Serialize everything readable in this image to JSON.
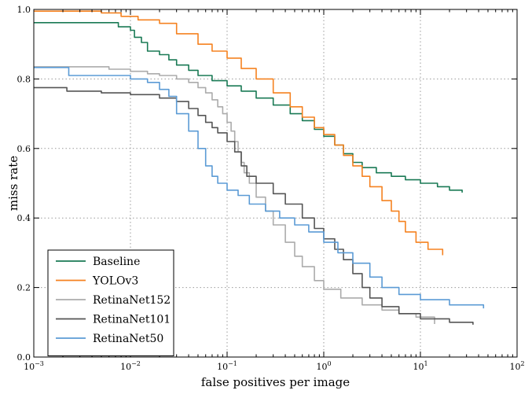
{
  "chart_data": {
    "type": "line",
    "title": "",
    "xlabel": "false positives per image",
    "ylabel": "miss rate",
    "xscale": "log",
    "xlim": [
      0.001,
      100
    ],
    "ylim": [
      0.0,
      1.0
    ],
    "xticks": [
      {
        "value": 0.001,
        "base": "10",
        "exp": "−3"
      },
      {
        "value": 0.01,
        "base": "10",
        "exp": "−2"
      },
      {
        "value": 0.1,
        "base": "10",
        "exp": "−1"
      },
      {
        "value": 1,
        "base": "10",
        "exp": "0"
      },
      {
        "value": 10,
        "base": "10",
        "exp": "1"
      },
      {
        "value": 100,
        "base": "10",
        "exp": "2"
      }
    ],
    "yticks": [
      {
        "value": 0.0,
        "label": "0.0"
      },
      {
        "value": 0.2,
        "label": "0.2"
      },
      {
        "value": 0.4,
        "label": "0.4"
      },
      {
        "value": 0.6,
        "label": "0.6"
      },
      {
        "value": 0.8,
        "label": "0.8"
      },
      {
        "value": 1.0,
        "label": "1.0"
      }
    ],
    "grid": true,
    "legend_position": "bottom-left",
    "series": [
      {
        "name": "Baseline",
        "color": "#1a7a55",
        "points": [
          [
            0.001,
            0.962
          ],
          [
            0.0052,
            0.962
          ],
          [
            0.0075,
            0.95
          ],
          [
            0.01,
            0.94
          ],
          [
            0.011,
            0.92
          ],
          [
            0.013,
            0.905
          ],
          [
            0.015,
            0.88
          ],
          [
            0.02,
            0.87
          ],
          [
            0.025,
            0.855
          ],
          [
            0.03,
            0.84
          ],
          [
            0.04,
            0.825
          ],
          [
            0.05,
            0.81
          ],
          [
            0.07,
            0.795
          ],
          [
            0.1,
            0.78
          ],
          [
            0.14,
            0.765
          ],
          [
            0.2,
            0.745
          ],
          [
            0.3,
            0.725
          ],
          [
            0.45,
            0.7
          ],
          [
            0.6,
            0.68
          ],
          [
            0.8,
            0.655
          ],
          [
            1.0,
            0.635
          ],
          [
            1.3,
            0.61
          ],
          [
            1.6,
            0.585
          ],
          [
            2.0,
            0.56
          ],
          [
            2.5,
            0.545
          ],
          [
            3.5,
            0.53
          ],
          [
            5.0,
            0.52
          ],
          [
            7.0,
            0.51
          ],
          [
            10,
            0.5
          ],
          [
            15,
            0.49
          ],
          [
            20,
            0.48
          ],
          [
            27,
            0.473
          ]
        ]
      },
      {
        "name": "YOLOv3",
        "color": "#f58220",
        "points": [
          [
            0.001,
            0.995
          ],
          [
            0.005,
            0.99
          ],
          [
            0.008,
            0.98
          ],
          [
            0.012,
            0.97
          ],
          [
            0.02,
            0.96
          ],
          [
            0.03,
            0.93
          ],
          [
            0.05,
            0.9
          ],
          [
            0.07,
            0.88
          ],
          [
            0.1,
            0.86
          ],
          [
            0.14,
            0.83
          ],
          [
            0.2,
            0.8
          ],
          [
            0.3,
            0.76
          ],
          [
            0.45,
            0.72
          ],
          [
            0.6,
            0.69
          ],
          [
            0.8,
            0.66
          ],
          [
            1.0,
            0.64
          ],
          [
            1.3,
            0.61
          ],
          [
            1.6,
            0.58
          ],
          [
            2.0,
            0.55
          ],
          [
            2.5,
            0.52
          ],
          [
            3.0,
            0.49
          ],
          [
            4.0,
            0.45
          ],
          [
            5.0,
            0.42
          ],
          [
            6.0,
            0.39
          ],
          [
            7.0,
            0.36
          ],
          [
            9.0,
            0.33
          ],
          [
            12,
            0.31
          ],
          [
            17,
            0.293
          ]
        ]
      },
      {
        "name": "RetinaNet152",
        "color": "#ababab",
        "points": [
          [
            0.001,
            0.835
          ],
          [
            0.003,
            0.835
          ],
          [
            0.006,
            0.828
          ],
          [
            0.01,
            0.822
          ],
          [
            0.015,
            0.815
          ],
          [
            0.02,
            0.81
          ],
          [
            0.03,
            0.8
          ],
          [
            0.04,
            0.79
          ],
          [
            0.05,
            0.775
          ],
          [
            0.06,
            0.76
          ],
          [
            0.07,
            0.74
          ],
          [
            0.08,
            0.72
          ],
          [
            0.09,
            0.7
          ],
          [
            0.1,
            0.675
          ],
          [
            0.11,
            0.65
          ],
          [
            0.12,
            0.62
          ],
          [
            0.13,
            0.59
          ],
          [
            0.14,
            0.56
          ],
          [
            0.15,
            0.53
          ],
          [
            0.17,
            0.5
          ],
          [
            0.2,
            0.46
          ],
          [
            0.25,
            0.42
          ],
          [
            0.3,
            0.38
          ],
          [
            0.4,
            0.33
          ],
          [
            0.5,
            0.29
          ],
          [
            0.6,
            0.26
          ],
          [
            0.8,
            0.22
          ],
          [
            1.0,
            0.195
          ],
          [
            1.5,
            0.17
          ],
          [
            2.5,
            0.15
          ],
          [
            4.0,
            0.135
          ],
          [
            6.0,
            0.125
          ],
          [
            9.0,
            0.115
          ],
          [
            14,
            0.095
          ]
        ]
      },
      {
        "name": "RetinaNet101",
        "color": "#555555",
        "points": [
          [
            0.001,
            0.775
          ],
          [
            0.0018,
            0.775
          ],
          [
            0.0022,
            0.765
          ],
          [
            0.005,
            0.76
          ],
          [
            0.01,
            0.755
          ],
          [
            0.02,
            0.745
          ],
          [
            0.03,
            0.735
          ],
          [
            0.04,
            0.715
          ],
          [
            0.05,
            0.695
          ],
          [
            0.06,
            0.675
          ],
          [
            0.07,
            0.66
          ],
          [
            0.08,
            0.645
          ],
          [
            0.1,
            0.62
          ],
          [
            0.12,
            0.59
          ],
          [
            0.14,
            0.55
          ],
          [
            0.16,
            0.52
          ],
          [
            0.2,
            0.5
          ],
          [
            0.3,
            0.47
          ],
          [
            0.4,
            0.44
          ],
          [
            0.6,
            0.4
          ],
          [
            0.8,
            0.37
          ],
          [
            1.0,
            0.34
          ],
          [
            1.3,
            0.31
          ],
          [
            1.6,
            0.28
          ],
          [
            2.0,
            0.24
          ],
          [
            2.5,
            0.2
          ],
          [
            3.0,
            0.17
          ],
          [
            4.0,
            0.145
          ],
          [
            6.0,
            0.125
          ],
          [
            10,
            0.11
          ],
          [
            20,
            0.1
          ],
          [
            35,
            0.093
          ]
        ]
      },
      {
        "name": "RetinaNet50",
        "color": "#5b9bd5",
        "points": [
          [
            0.001,
            0.833
          ],
          [
            0.0022,
            0.833
          ],
          [
            0.0023,
            0.81
          ],
          [
            0.01,
            0.8
          ],
          [
            0.015,
            0.79
          ],
          [
            0.02,
            0.77
          ],
          [
            0.025,
            0.75
          ],
          [
            0.03,
            0.7
          ],
          [
            0.04,
            0.65
          ],
          [
            0.05,
            0.6
          ],
          [
            0.06,
            0.55
          ],
          [
            0.07,
            0.52
          ],
          [
            0.08,
            0.5
          ],
          [
            0.1,
            0.48
          ],
          [
            0.13,
            0.465
          ],
          [
            0.17,
            0.44
          ],
          [
            0.25,
            0.42
          ],
          [
            0.35,
            0.4
          ],
          [
            0.5,
            0.38
          ],
          [
            0.7,
            0.36
          ],
          [
            1.0,
            0.33
          ],
          [
            1.4,
            0.3
          ],
          [
            2.0,
            0.27
          ],
          [
            3.0,
            0.23
          ],
          [
            4.0,
            0.2
          ],
          [
            6.0,
            0.18
          ],
          [
            10,
            0.165
          ],
          [
            20,
            0.15
          ],
          [
            45,
            0.14
          ]
        ]
      }
    ]
  }
}
